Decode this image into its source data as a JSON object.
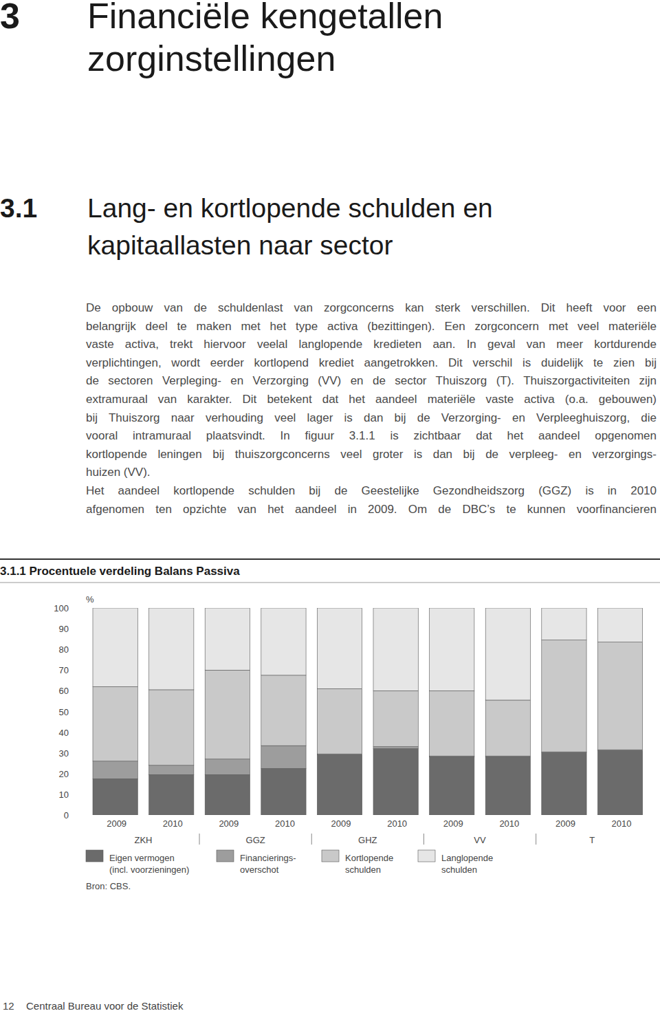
{
  "header": {
    "chapter_number": "3",
    "chapter_title": [
      "Financiële kengetallen",
      "zorginstellingen"
    ]
  },
  "section": {
    "number": "3.1",
    "title": [
      "Lang- en kortlopende schulden en",
      "kapitaallasten naar sector"
    ]
  },
  "body": {
    "paragraphs": [
      [
        "De opbouw van de schuldenlast van zorgconcerns kan sterk verschillen. Dit heeft voor een",
        "belangrijk deel te maken met het type activa (bezittingen). Een zorgconcern met veel materiële",
        "vaste activa, trekt hiervoor veelal langlopende kredieten aan. In geval van meer kortdurende",
        "verplichtingen, wordt eerder kortlopend krediet aangetrokken. Dit verschil is duidelijk te zien bij",
        "de sectoren Verpleging- en Verzorging (VV) en de sector Thuiszorg (T). Thuiszorgactiviteiten zijn",
        "extramuraal van karakter. Dit betekent dat het aandeel materiële vaste activa (o.a. gebouwen)",
        "bij Thuiszorg naar verhouding veel lager is dan bij de Verzorging- en Verpleeghuiszorg, die",
        "vooral intramuraal plaatsvindt. In figuur 3.1.1 is zichtbaar dat het aandeel opgenomen",
        "kortlopende leningen bij thuiszorgconcerns veel groter is dan bij de verpleeg- en verzorgings-",
        "huizen (VV)."
      ],
      [
        "Het aandeel kortlopende schulden bij de Geestelijke Gezondheidszorg (GGZ) is in 2010",
        "afgenomen ten opzichte van het aandeel in 2009. Om de DBC’s te kunnen voorfinancieren"
      ]
    ]
  },
  "chart_data": {
    "type": "bar",
    "stacked": true,
    "grid": false,
    "title": "3.1.1 Procentuele verdeling Balans Passiva",
    "y_label": "%",
    "categories": [
      "2009",
      "2010",
      "2009",
      "2010",
      "2009",
      "2010",
      "2009",
      "2010",
      "2009",
      "2010"
    ],
    "groups": [
      "ZKH",
      "GGZ",
      "GHZ",
      "VV",
      "T"
    ],
    "series": [
      {
        "name": "Eigen vermogen\n(incl. voorzieningen)",
        "color": "#6b6b6b",
        "values": [
          17.5,
          19.5,
          19.5,
          22.5,
          29,
          32,
          28,
          28,
          30,
          31
        ]
      },
      {
        "name": "Financierings-\noverschot",
        "color": "#9d9d9d",
        "values": [
          8.5,
          4.5,
          7.5,
          11,
          0.5,
          1,
          0.5,
          0.5,
          0.5,
          0.5
        ]
      },
      {
        "name": "Kortlopende\nschulden",
        "color": "#c9c9c9",
        "values": [
          36,
          36.5,
          43,
          34,
          31.5,
          27,
          31.5,
          27,
          54,
          52
        ]
      },
      {
        "name": "Langlopende\nschulden",
        "color": "#e6e6e6",
        "values": [
          38,
          39.5,
          30,
          32.5,
          39,
          40,
          40,
          44.5,
          15.5,
          16.5
        ]
      }
    ],
    "ylim": [
      0,
      100
    ],
    "yticks": [
      0,
      10,
      20,
      30,
      40,
      50,
      60,
      70,
      80,
      90,
      100
    ],
    "source": "Bron: CBS."
  },
  "footer": {
    "page_number": 12,
    "publisher": "Centraal Bureau voor de Statistiek"
  }
}
